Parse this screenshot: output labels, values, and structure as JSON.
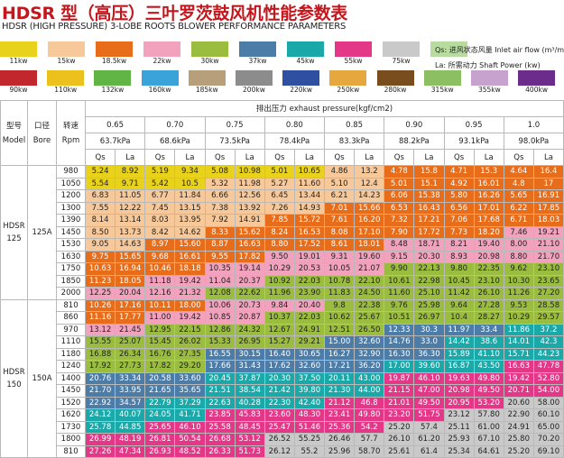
{
  "title": "HDSR 型（高压）三叶罗茨鼓风机性能参数表",
  "subtitle": "HDSR (HIGH PRESSURE) 3-LOBE ROOTS BLOWER PERFORMANCE PARAMETERS",
  "legend_note": {
    "line1": "Qs: 进风状态风量 Inlet air flow (m³/min)",
    "line2": "La: 所需动力 Shaft Power (kw)"
  },
  "legend_row1": [
    {
      "label": "11kw",
      "color": "#e8d21c"
    },
    {
      "label": "15kw",
      "color": "#f7c99a"
    },
    {
      "label": "18.5kw",
      "color": "#e86d1b"
    },
    {
      "label": "22kw",
      "color": "#f2a2bc"
    },
    {
      "label": "30kw",
      "color": "#9bbd3f"
    },
    {
      "label": "37kw",
      "color": "#4c7da8"
    },
    {
      "label": "45kw",
      "color": "#1aa8a8"
    },
    {
      "label": "55kw",
      "color": "#e33887"
    },
    {
      "label": "75kw",
      "color": "#c9c9c9"
    },
    {
      "label": "",
      "color": "#b8dca0"
    }
  ],
  "legend_row2": [
    {
      "label": "90kw",
      "color": "#c1272d"
    },
    {
      "label": "110kw",
      "color": "#ecc11e"
    },
    {
      "label": "132kw",
      "color": "#61b544"
    },
    {
      "label": "160kw",
      "color": "#3aa3d9"
    },
    {
      "label": "185kw",
      "color": "#b79f7b"
    },
    {
      "label": "200kw",
      "color": "#8c8c8c"
    },
    {
      "label": "220kw",
      "color": "#2f4fa0"
    },
    {
      "label": "250kw",
      "color": "#e6a83e"
    },
    {
      "label": "280kw",
      "color": "#7a4d1f"
    },
    {
      "label": "315kw",
      "color": "#8bbf62"
    },
    {
      "label": "355kw",
      "color": "#c7a2ce"
    },
    {
      "label": "400kw",
      "color": "#6b2c8c"
    }
  ],
  "headers": {
    "model_cn": "型号",
    "model_en": "Model",
    "bore_cn": "口径",
    "bore_en": "Bore",
    "rpm_cn": "转速",
    "rpm_en": "Rpm",
    "pressure_label": "排出压力 exhaust pressure(kgf/cm2)",
    "pressures": [
      "0.65",
      "0.70",
      "0.75",
      "0.80",
      "0.85",
      "0.90",
      "0.95",
      "1.0"
    ],
    "kpa": [
      "63.7kPa",
      "68.6kPa",
      "73.5kPa",
      "78.4kPa",
      "83.3kPa",
      "88.2kPa",
      "93.1kPa",
      "98.0kPa"
    ],
    "qs": "Qs",
    "la": "La"
  },
  "groups": [
    {
      "model": "HDSR\n125",
      "bore": "125A",
      "rows": [
        {
          "rpm": "980",
          "cells": [
            [
              "5.24",
              "8.92"
            ],
            [
              "5.19",
              "9.34"
            ],
            [
              "5.08",
              "10.98"
            ],
            [
              "5.01",
              "10.65"
            ],
            [
              "4.86",
              "13.2"
            ],
            [
              "4.78",
              "15.8"
            ],
            [
              "4.71",
              "15.3"
            ],
            [
              "4.64",
              "16.4"
            ]
          ]
        },
        {
          "rpm": "1050",
          "cells": [
            [
              "5.54",
              "9.71"
            ],
            [
              "5.42",
              "10.5"
            ],
            [
              "5.32",
              "11.98"
            ],
            [
              "5.27",
              "11.60"
            ],
            [
              "5.10",
              "12.4"
            ],
            [
              "5.01",
              "15.1"
            ],
            [
              "4.92",
              "16.01"
            ],
            [
              "4.8",
              "17"
            ]
          ]
        },
        {
          "rpm": "1200",
          "cells": [
            [
              "6.83",
              "11.05"
            ],
            [
              "6.77",
              "11.84"
            ],
            [
              "6.66",
              "12.56"
            ],
            [
              "6.45",
              "13.44"
            ],
            [
              "6.21",
              "14.23"
            ],
            [
              "6.06",
              "15.38"
            ],
            [
              "5.80",
              "16.26"
            ],
            [
              "5.65",
              "16.91"
            ]
          ]
        },
        {
          "rpm": "1300",
          "cells": [
            [
              "7.55",
              "12.22"
            ],
            [
              "7.45",
              "13.15"
            ],
            [
              "7.38",
              "13.92"
            ],
            [
              "7.26",
              "14.93"
            ],
            [
              "7.01",
              "15.66"
            ],
            [
              "6.53",
              "16.43"
            ],
            [
              "6.56",
              "17.01"
            ],
            [
              "6.22",
              "17.85"
            ]
          ]
        },
        {
          "rpm": "1390",
          "cells": [
            [
              "8.14",
              "13.14"
            ],
            [
              "8.03",
              "13.95"
            ],
            [
              "7.92",
              "14.91"
            ],
            [
              "7.85",
              "15.72"
            ],
            [
              "7.61",
              "16.20"
            ],
            [
              "7.32",
              "17.21"
            ],
            [
              "7.06",
              "17.68"
            ],
            [
              "6.71",
              "18.03"
            ]
          ]
        },
        {
          "rpm": "1450",
          "cells": [
            [
              "8.50",
              "13.73"
            ],
            [
              "8.42",
              "14.62"
            ],
            [
              "8.33",
              "15.62"
            ],
            [
              "8.24",
              "16.53"
            ],
            [
              "8.08",
              "17.10"
            ],
            [
              "7.90",
              "17.72"
            ],
            [
              "7.73",
              "18.20"
            ],
            [
              "7.46",
              "19.21"
            ]
          ]
        },
        {
          "rpm": "1530",
          "cells": [
            [
              "9.05",
              "14.63"
            ],
            [
              "8.97",
              "15.60"
            ],
            [
              "8.87",
              "16.63"
            ],
            [
              "8.80",
              "17.52"
            ],
            [
              "8.61",
              "18.01"
            ],
            [
              "8.48",
              "18.71"
            ],
            [
              "8.21",
              "19.40"
            ],
            [
              "8.00",
              "21.10"
            ]
          ]
        },
        {
          "rpm": "1630",
          "cells": [
            [
              "9.75",
              "15.65"
            ],
            [
              "9.68",
              "16.61"
            ],
            [
              "9.55",
              "17.82"
            ],
            [
              "9.50",
              "19.01"
            ],
            [
              "9.31",
              "19.60"
            ],
            [
              "9.15",
              "20.30"
            ],
            [
              "8.93",
              "20.98"
            ],
            [
              "8.80",
              "21.70"
            ]
          ]
        },
        {
          "rpm": "1750",
          "cells": [
            [
              "10.63",
              "16.94"
            ],
            [
              "10.46",
              "18.18"
            ],
            [
              "10.35",
              "19.14"
            ],
            [
              "10.29",
              "20.53"
            ],
            [
              "10.05",
              "21.07"
            ],
            [
              "9.90",
              "22.13"
            ],
            [
              "9.80",
              "22.35"
            ],
            [
              "9.62",
              "23.10"
            ]
          ]
        },
        {
          "rpm": "1850",
          "cells": [
            [
              "11.23",
              "18.05"
            ],
            [
              "11.18",
              "19.42"
            ],
            [
              "11.04",
              "20.37"
            ],
            [
              "10.92",
              "22.03"
            ],
            [
              "10.78",
              "22.10"
            ],
            [
              "10.61",
              "22.98"
            ],
            [
              "10.45",
              "23.10"
            ],
            [
              "10.30",
              "23.65"
            ]
          ]
        },
        {
          "rpm": "2000",
          "cells": [
            [
              "12.25",
              "20.04"
            ],
            [
              "12.16",
              "21.32"
            ],
            [
              "12.08",
              "22.62"
            ],
            [
              "11.96",
              "23.90"
            ],
            [
              "11.83",
              "24.50"
            ],
            [
              "11.60",
              "25.10"
            ],
            [
              "11.42",
              "26.10"
            ],
            [
              "11.26",
              "27.20"
            ]
          ]
        }
      ]
    },
    {
      "model": "HDSR\n150",
      "bore": "150A",
      "rows": [
        {
          "rpm": "810",
          "cells": [
            [
              "10.26",
              "17.16"
            ],
            [
              "10.11",
              "18.00"
            ],
            [
              "10.06",
              "20.73"
            ],
            [
              "9.84",
              "20.40"
            ],
            [
              "9.8",
              "22.38"
            ],
            [
              "9.76",
              "25.98"
            ],
            [
              "9.64",
              "27.28"
            ],
            [
              "9.53",
              "28.58"
            ]
          ]
        },
        {
          "rpm": "860",
          "cells": [
            [
              "11.16",
              "17.77"
            ],
            [
              "11.00",
              "19.42"
            ],
            [
              "10.85",
              "20.87"
            ],
            [
              "10.37",
              "22.03"
            ],
            [
              "10.62",
              "25.67"
            ],
            [
              "10.51",
              "26.97"
            ],
            [
              "10.4",
              "28.27"
            ],
            [
              "10.29",
              "29.57"
            ]
          ]
        },
        {
          "rpm": "970",
          "cells": [
            [
              "13.12",
              "21.45"
            ],
            [
              "12.95",
              "22.15"
            ],
            [
              "12.86",
              "24.32"
            ],
            [
              "12.67",
              "24.91"
            ],
            [
              "12.51",
              "26.50"
            ],
            [
              "12.33",
              "30.3"
            ],
            [
              "11.97",
              "33.4"
            ],
            [
              "11.86",
              "37.2"
            ]
          ]
        },
        {
          "rpm": "1110",
          "cells": [
            [
              "15.55",
              "25.07"
            ],
            [
              "15.45",
              "26.02"
            ],
            [
              "15.33",
              "26.95"
            ],
            [
              "15.27",
              "29.21"
            ],
            [
              "15.00",
              "32.60"
            ],
            [
              "14.76",
              "33.0"
            ],
            [
              "14.42",
              "38.6"
            ],
            [
              "14.01",
              "42.3"
            ]
          ]
        },
        {
          "rpm": "1180",
          "cells": [
            [
              "16.88",
              "26.34"
            ],
            [
              "16.76",
              "27.35"
            ],
            [
              "16.55",
              "30.15"
            ],
            [
              "16.40",
              "30.65"
            ],
            [
              "16.27",
              "32.90"
            ],
            [
              "16.30",
              "36.30"
            ],
            [
              "15.89",
              "41.10"
            ],
            [
              "15.71",
              "44.23"
            ]
          ]
        },
        {
          "rpm": "1240",
          "cells": [
            [
              "17.92",
              "27.73"
            ],
            [
              "17.82",
              "29.20"
            ],
            [
              "17.66",
              "31.43"
            ],
            [
              "17.62",
              "32.60"
            ],
            [
              "17.21",
              "36.20"
            ],
            [
              "17.00",
              "39.60"
            ],
            [
              "16.87",
              "43.50"
            ],
            [
              "16.63",
              "47.78"
            ]
          ]
        },
        {
          "rpm": "1400",
          "cells": [
            [
              "20.76",
              "33.34"
            ],
            [
              "20.58",
              "33.60"
            ],
            [
              "20.45",
              "37.87"
            ],
            [
              "20.30",
              "37.50"
            ],
            [
              "20.11",
              "43.00"
            ],
            [
              "19.87",
              "46.10"
            ],
            [
              "19.63",
              "49.80"
            ],
            [
              "19.42",
              "52.80"
            ]
          ]
        },
        {
          "rpm": "1450",
          "cells": [
            [
              "21.70",
              "33.95"
            ],
            [
              "21.65",
              "35.65"
            ],
            [
              "21.51",
              "38.54"
            ],
            [
              "21.42",
              "39.80"
            ],
            [
              "21.30",
              "44.00"
            ],
            [
              "21.15",
              "47.00"
            ],
            [
              "20.98",
              "49.50"
            ],
            [
              "20.71",
              "54.00"
            ]
          ]
        },
        {
          "rpm": "1520",
          "cells": [
            [
              "22.92",
              "34.57"
            ],
            [
              "22.79",
              "37.29"
            ],
            [
              "22.63",
              "40.28"
            ],
            [
              "22.30",
              "42.40"
            ],
            [
              "21.12",
              "46.8"
            ],
            [
              "21.01",
              "49.50"
            ],
            [
              "20.95",
              "53.20"
            ],
            [
              "20.60",
              "58.00"
            ]
          ]
        },
        {
          "rpm": "1620",
          "cells": [
            [
              "24.12",
              "40.07"
            ],
            [
              "24.05",
              "41.71"
            ],
            [
              "23.85",
              "45.83"
            ],
            [
              "23.60",
              "48.30"
            ],
            [
              "23.41",
              "49.80"
            ],
            [
              "23.20",
              "51.75"
            ],
            [
              "23.12",
              "57.80"
            ],
            [
              "22.90",
              "60.10"
            ]
          ]
        },
        {
          "rpm": "1730",
          "cells": [
            [
              "25.78",
              "44.85"
            ],
            [
              "25.65",
              "46.10"
            ],
            [
              "25.58",
              "48.45"
            ],
            [
              "25.47",
              "51.46"
            ],
            [
              "25.36",
              "54.2"
            ],
            [
              "25.20",
              "57.4"
            ],
            [
              "25.11",
              "61.00"
            ],
            [
              "24.91",
              "65.00"
            ]
          ]
        },
        {
          "rpm": "1800",
          "cells": [
            [
              "26.99",
              "48.19"
            ],
            [
              "26.81",
              "50.54"
            ],
            [
              "26.68",
              "53.12"
            ],
            [
              "26.52",
              "55.25"
            ],
            [
              "26.46",
              "57.7"
            ],
            [
              "26.10",
              "61.20"
            ],
            [
              "25.93",
              "67.10"
            ],
            [
              "25.80",
              "70.20"
            ]
          ]
        },
        {
          "rpm": "810",
          "cells": [
            [
              "27.26",
              "47.34"
            ],
            [
              "26.93",
              "48.52"
            ],
            [
              "26.33",
              "51.73"
            ],
            [
              "26.12",
              "55.2"
            ],
            [
              "25.96",
              "58.70"
            ],
            [
              "25.61",
              "61.4"
            ],
            [
              "25.34",
              "64.61"
            ],
            [
              "25.20",
              "69.10"
            ]
          ]
        }
      ]
    }
  ]
}
